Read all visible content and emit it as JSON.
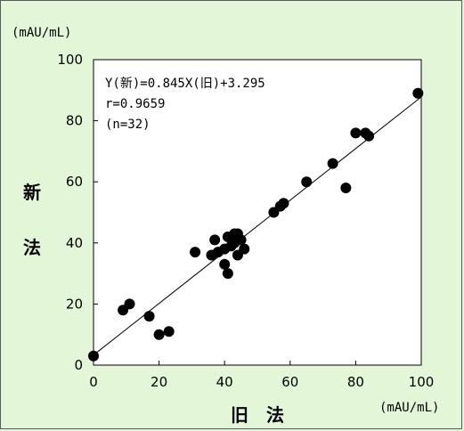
{
  "chart_data": {
    "type": "scatter",
    "title": "",
    "xlabel": "旧　法",
    "ylabel": "新法",
    "x_unit": "(mAU/mL)",
    "y_unit": "(mAU/mL)",
    "xlim": [
      0,
      100
    ],
    "ylim": [
      0,
      100
    ],
    "xticks": [
      "0",
      "20",
      "40",
      "60",
      "80",
      "100"
    ],
    "yticks": [
      "0",
      "20",
      "40",
      "60",
      "80",
      "100"
    ],
    "grid": false,
    "annotations": [
      "Y(新)=0.845X(旧)+3.295",
      "r=0.9659",
      "(n=32)"
    ],
    "regression": {
      "slope": 0.845,
      "intercept": 3.295
    },
    "points": [
      [
        0,
        3
      ],
      [
        9,
        18
      ],
      [
        11,
        20
      ],
      [
        17,
        16
      ],
      [
        20,
        10
      ],
      [
        23,
        11
      ],
      [
        31,
        37
      ],
      [
        36,
        36
      ],
      [
        37,
        41
      ],
      [
        38,
        37
      ],
      [
        40,
        38
      ],
      [
        40,
        33
      ],
      [
        41,
        30
      ],
      [
        41,
        42
      ],
      [
        42,
        39
      ],
      [
        43,
        40
      ],
      [
        43,
        43
      ],
      [
        44,
        42
      ],
      [
        44,
        36
      ],
      [
        44,
        43
      ],
      [
        45,
        41
      ],
      [
        46,
        38
      ],
      [
        55,
        50
      ],
      [
        57,
        52
      ],
      [
        58,
        53
      ],
      [
        65,
        60
      ],
      [
        73,
        66
      ],
      [
        77,
        58
      ],
      [
        80,
        76
      ],
      [
        83,
        76
      ],
      [
        84,
        75
      ],
      [
        99,
        89
      ]
    ],
    "colors": {
      "background": "#e3f7d8",
      "plot_area": "#ffffff",
      "marker": "#000000"
    }
  }
}
